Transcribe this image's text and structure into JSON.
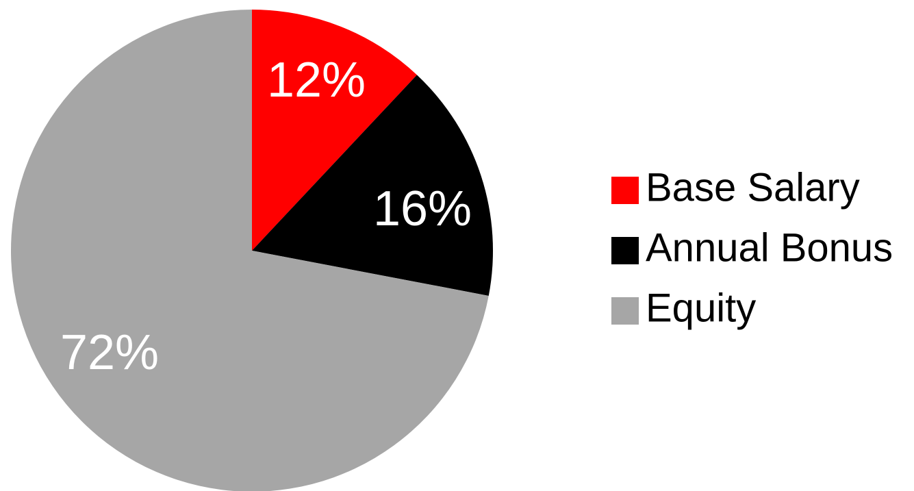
{
  "chart_data": {
    "type": "pie",
    "categories": [
      "Base Salary",
      "Annual Bonus",
      "Equity"
    ],
    "values": [
      12,
      16,
      72
    ],
    "labels": [
      "12%",
      "16%",
      "72%"
    ],
    "colors": [
      "#ff0000",
      "#000000",
      "#a6a6a6"
    ],
    "label_color": "#ffffff",
    "legend_placement": "right",
    "title": ""
  }
}
